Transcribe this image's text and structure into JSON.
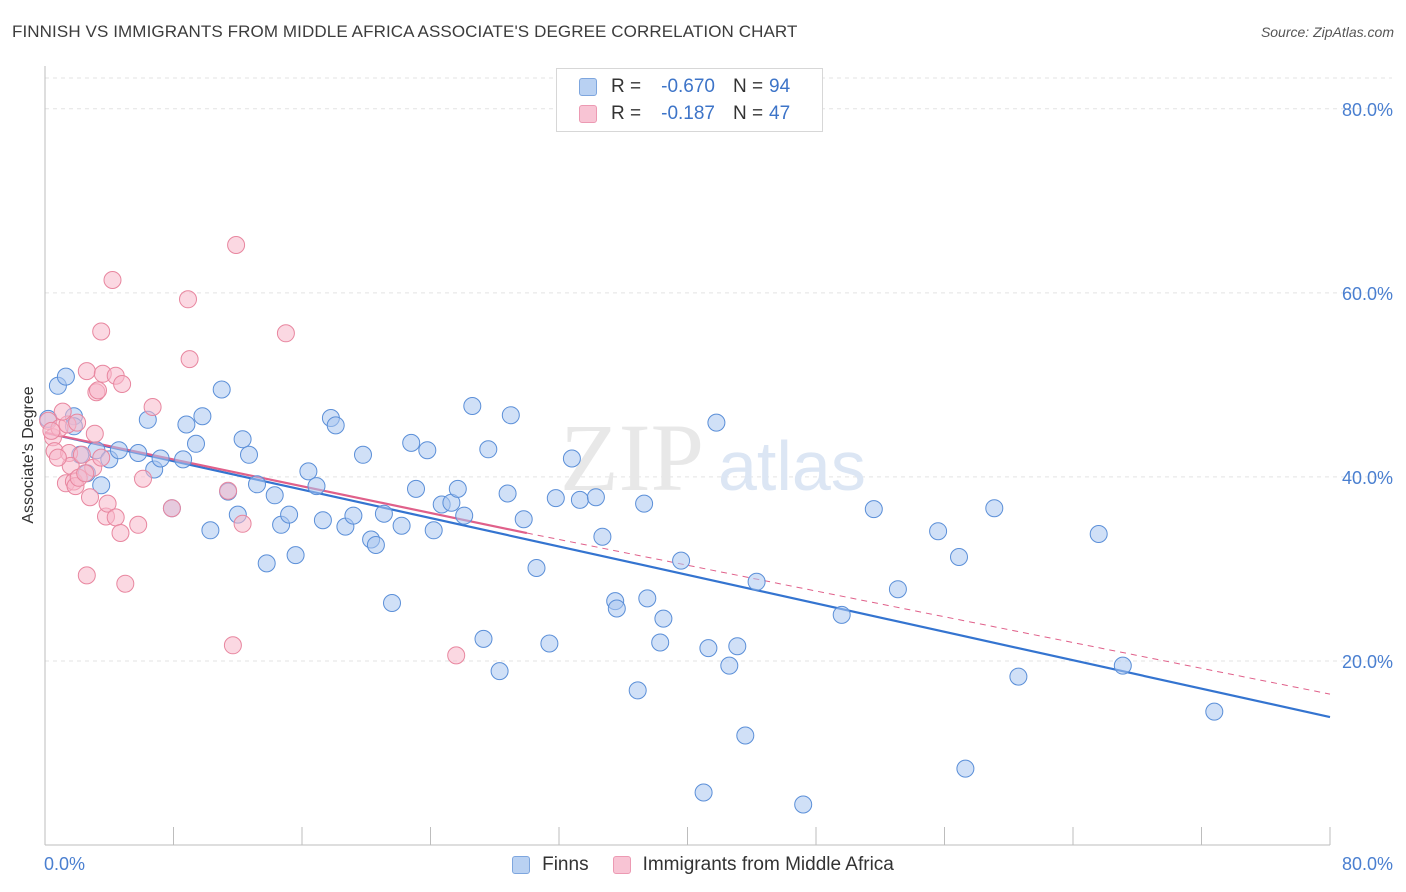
{
  "title": "FINNISH VS IMMIGRANTS FROM MIDDLE AFRICA ASSOCIATE'S DEGREE CORRELATION CHART",
  "source": "Source: ZipAtlas.com",
  "watermark": {
    "zip": "ZIP",
    "atlas": "atlas"
  },
  "colors": {
    "blue_fill": "#a9c6f0",
    "blue_stroke": "#5b8fd8",
    "blue_line": "#3474d0",
    "pink_fill": "#f7b8cb",
    "pink_stroke": "#e8869f",
    "pink_line": "#e0608a",
    "tick_text": "#4a7fd0",
    "grid": "#e3e3e3"
  },
  "legend": {
    "r_label": "R =",
    "n_label": "N =",
    "rows": [
      {
        "series": "Finns",
        "r": "-0.670",
        "n": "94"
      },
      {
        "series": "Immigrants from Middle Africa",
        "r": "-0.187",
        "n": "47"
      }
    ]
  },
  "bottom_legend": [
    "Finns",
    "Immigrants from Middle Africa"
  ],
  "chart_data": {
    "type": "scatter",
    "title": "FINNISH VS IMMIGRANTS FROM MIDDLE AFRICA ASSOCIATE'S DEGREE CORRELATION CHART",
    "xlabel": "",
    "ylabel": "Associate's Degree",
    "xlim": [
      0,
      80
    ],
    "ylim": [
      0,
      84
    ],
    "x_tick_labels": [
      "0.0%",
      "80.0%"
    ],
    "y_ticks": [
      20,
      40,
      60,
      80
    ],
    "y_tick_labels": [
      "20.0%",
      "40.0%",
      "60.0%",
      "80.0%"
    ],
    "series": [
      {
        "name": "Finns",
        "color": "#5b8fd8",
        "trend": {
          "x": [
            0,
            80
          ],
          "y": [
            44.8,
            13.9
          ],
          "style": "solid"
        },
        "points": [
          [
            0.2,
            46.3
          ],
          [
            0.8,
            49.9
          ],
          [
            1.3,
            50.9
          ],
          [
            1.8,
            46.6
          ],
          [
            2.2,
            42.4
          ],
          [
            2.6,
            40.4
          ],
          [
            3.2,
            42.9
          ],
          [
            3.5,
            39.1
          ],
          [
            4.0,
            41.9
          ],
          [
            4.6,
            42.9
          ],
          [
            5.8,
            42.6
          ],
          [
            6.4,
            46.2
          ],
          [
            6.8,
            40.8
          ],
          [
            7.2,
            42.0
          ],
          [
            7.9,
            36.6
          ],
          [
            8.6,
            41.9
          ],
          [
            8.8,
            45.7
          ],
          [
            9.4,
            43.6
          ],
          [
            9.8,
            46.6
          ],
          [
            10.3,
            34.2
          ],
          [
            11.0,
            49.5
          ],
          [
            11.4,
            38.4
          ],
          [
            12.0,
            35.9
          ],
          [
            12.3,
            44.1
          ],
          [
            12.7,
            42.4
          ],
          [
            13.2,
            39.2
          ],
          [
            13.8,
            30.6
          ],
          [
            14.3,
            38.0
          ],
          [
            14.7,
            34.8
          ],
          [
            15.2,
            35.9
          ],
          [
            15.6,
            31.5
          ],
          [
            16.4,
            40.6
          ],
          [
            16.9,
            39.0
          ],
          [
            17.3,
            35.3
          ],
          [
            17.8,
            46.4
          ],
          [
            18.1,
            45.6
          ],
          [
            18.7,
            34.6
          ],
          [
            19.2,
            35.8
          ],
          [
            19.8,
            42.4
          ],
          [
            20.3,
            33.2
          ],
          [
            20.6,
            32.6
          ],
          [
            21.1,
            36.0
          ],
          [
            21.6,
            26.3
          ],
          [
            22.2,
            34.7
          ],
          [
            22.8,
            43.7
          ],
          [
            23.1,
            38.7
          ],
          [
            23.8,
            42.9
          ],
          [
            24.2,
            34.2
          ],
          [
            24.7,
            37.0
          ],
          [
            25.3,
            37.2
          ],
          [
            25.7,
            38.7
          ],
          [
            26.1,
            35.8
          ],
          [
            26.6,
            47.7
          ],
          [
            27.3,
            22.4
          ],
          [
            27.6,
            43.0
          ],
          [
            28.3,
            18.9
          ],
          [
            28.8,
            38.2
          ],
          [
            29.0,
            46.7
          ],
          [
            29.8,
            35.4
          ],
          [
            30.6,
            30.1
          ],
          [
            31.4,
            21.9
          ],
          [
            31.8,
            37.7
          ],
          [
            32.8,
            42.0
          ],
          [
            33.3,
            37.5
          ],
          [
            34.3,
            37.8
          ],
          [
            34.7,
            33.5
          ],
          [
            35.5,
            26.5
          ],
          [
            35.6,
            25.7
          ],
          [
            36.9,
            16.8
          ],
          [
            37.3,
            37.1
          ],
          [
            37.5,
            26.8
          ],
          [
            38.3,
            22.0
          ],
          [
            38.5,
            24.6
          ],
          [
            39.6,
            30.9
          ],
          [
            41.0,
            5.7
          ],
          [
            41.3,
            21.4
          ],
          [
            41.8,
            45.9
          ],
          [
            42.6,
            19.5
          ],
          [
            43.1,
            21.6
          ],
          [
            43.6,
            11.9
          ],
          [
            44.3,
            28.6
          ],
          [
            47.2,
            4.4
          ],
          [
            49.6,
            25.0
          ],
          [
            51.6,
            36.5
          ],
          [
            53.1,
            27.8
          ],
          [
            55.6,
            34.1
          ],
          [
            56.9,
            31.3
          ],
          [
            57.3,
            8.3
          ],
          [
            59.1,
            36.6
          ],
          [
            60.6,
            18.3
          ],
          [
            65.6,
            33.8
          ],
          [
            67.1,
            19.5
          ],
          [
            72.8,
            14.5
          ],
          [
            1.8,
            45.5
          ]
        ]
      },
      {
        "name": "Immigrants from Middle Africa",
        "color": "#e8869f",
        "trend": {
          "x": [
            0,
            30
          ],
          "y": [
            44.8,
            33.9
          ],
          "style": "solid",
          "extension": {
            "x": [
              30,
              80
            ],
            "y": [
              33.9,
              16.4
            ],
            "style": "dashed"
          }
        },
        "points": [
          [
            0.2,
            46.1
          ],
          [
            0.5,
            44.3
          ],
          [
            0.6,
            42.8
          ],
          [
            0.9,
            45.3
          ],
          [
            1.3,
            39.3
          ],
          [
            1.4,
            45.7
          ],
          [
            1.5,
            42.6
          ],
          [
            1.6,
            41.2
          ],
          [
            1.8,
            39.5
          ],
          [
            1.9,
            39.0
          ],
          [
            2.0,
            45.9
          ],
          [
            2.1,
            39.9
          ],
          [
            2.3,
            42.4
          ],
          [
            2.6,
            51.5
          ],
          [
            2.6,
            29.3
          ],
          [
            2.8,
            37.8
          ],
          [
            3.0,
            41.0
          ],
          [
            3.2,
            49.2
          ],
          [
            3.3,
            49.4
          ],
          [
            3.5,
            42.1
          ],
          [
            3.5,
            55.8
          ],
          [
            3.6,
            51.2
          ],
          [
            3.8,
            35.7
          ],
          [
            3.9,
            37.1
          ],
          [
            4.2,
            61.4
          ],
          [
            4.4,
            51.0
          ],
          [
            4.4,
            35.6
          ],
          [
            4.7,
            33.9
          ],
          [
            4.8,
            50.1
          ],
          [
            5.0,
            28.4
          ],
          [
            5.8,
            34.8
          ],
          [
            6.7,
            47.6
          ],
          [
            7.9,
            36.6
          ],
          [
            8.9,
            59.3
          ],
          [
            9.0,
            52.8
          ],
          [
            11.4,
            38.5
          ],
          [
            11.7,
            21.7
          ],
          [
            11.9,
            65.2
          ],
          [
            12.3,
            34.9
          ],
          [
            15.0,
            55.6
          ],
          [
            25.6,
            20.6
          ],
          [
            0.4,
            45.0
          ],
          [
            1.1,
            47.1
          ],
          [
            2.5,
            40.4
          ],
          [
            3.1,
            44.7
          ],
          [
            0.8,
            42.1
          ],
          [
            6.1,
            39.8
          ]
        ]
      }
    ]
  }
}
